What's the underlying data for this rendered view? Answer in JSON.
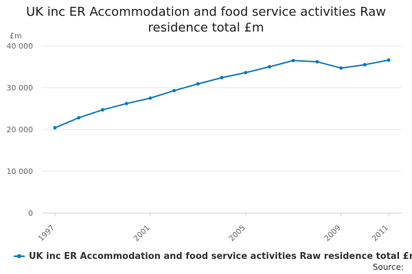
{
  "colors": {
    "series": "#0b7ab8",
    "grid": "#e6e6e6",
    "axis": "#cccccc"
  },
  "source_label": "Source:",
  "chart_data": {
    "type": "line",
    "title": "UK inc ER Accommodation and food service activities Raw residence total £m",
    "ylabel": "£m",
    "xlabel": "",
    "ylim": [
      0,
      40000
    ],
    "yticks": [
      0,
      10000,
      20000,
      30000,
      40000
    ],
    "ytick_labels": [
      "0",
      "10 000",
      "20 000",
      "30 000",
      "40 000"
    ],
    "x": [
      1997,
      1998,
      1999,
      2000,
      2001,
      2002,
      2003,
      2004,
      2005,
      2006,
      2007,
      2008,
      2009,
      2010,
      2011
    ],
    "xtick_labels": [
      "1997",
      "2001",
      "2005",
      "2009",
      "2011"
    ],
    "xtick_values": [
      1997,
      2001,
      2005,
      2009,
      2011
    ],
    "grid": true,
    "legend_position": "bottom",
    "series": [
      {
        "name": "UK inc ER Accommodation and food service activities Raw residence total £m",
        "values": [
          20400,
          22800,
          24700,
          26200,
          27500,
          29300,
          30900,
          32400,
          33600,
          35000,
          36500,
          36200,
          34700,
          35500,
          36600
        ]
      }
    ]
  }
}
